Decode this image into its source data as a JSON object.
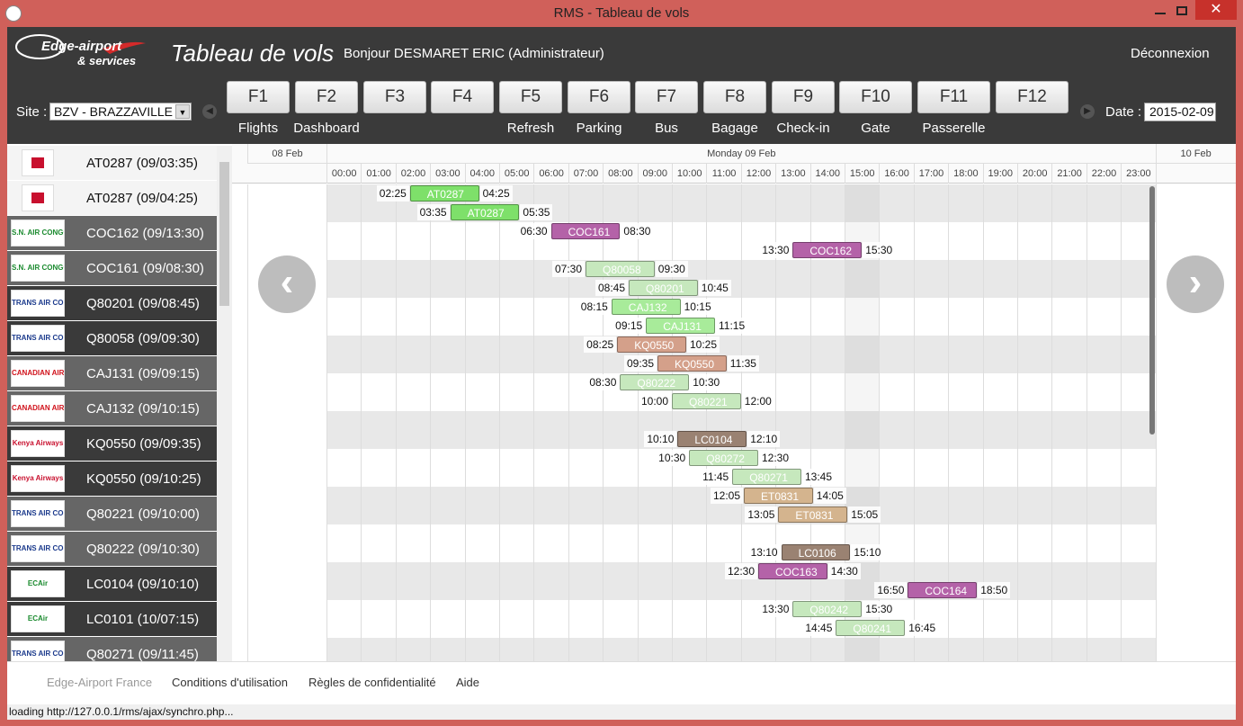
{
  "window": {
    "title": "RMS - Tableau de vols"
  },
  "header": {
    "brand": "Edge-airport",
    "brand_sub": "& services",
    "page_title": "Tableau de vols",
    "greeting": "Bonjour DESMARET ERIC (Administrateur)",
    "logout": "Déconnexion"
  },
  "toolbar": {
    "site_label": "Site :",
    "site": "BZV - BRAZZAVILLE",
    "date_label": "Date :",
    "date": "2015-02-09",
    "keys": [
      {
        "key": "F1",
        "label": "Flights"
      },
      {
        "key": "F2",
        "label": "Dashboard"
      },
      {
        "key": "F3"
      },
      {
        "key": "F4"
      },
      {
        "key": "F5",
        "label": "Refresh"
      },
      {
        "key": "F6",
        "label": "Parking"
      },
      {
        "key": "F7",
        "label": "Bus"
      },
      {
        "key": "F8",
        "label": "Bagage"
      },
      {
        "key": "F9",
        "label": "Check-in"
      },
      {
        "key": "F10",
        "label": "Gate"
      },
      {
        "key": "F11",
        "label": "Passerelle"
      },
      {
        "key": "F12"
      }
    ]
  },
  "flight_list": [
    {
      "flight": "AT0287 (09/03:35)",
      "logo_color": "#c8102e"
    },
    {
      "flight": "AT0287 (09/04:25)",
      "logo_color": "#c8102e"
    },
    {
      "flight": "COC162 (09/13:30)",
      "logo": "S.N. AIR CONGO",
      "logo_color": "#1a8a2e"
    },
    {
      "flight": "COC161 (09/08:30)",
      "logo": "S.N. AIR CONGO",
      "logo_color": "#1a8a2e"
    },
    {
      "flight": "Q80201 (09/08:45)",
      "logo": "TRANS AIR CONGO",
      "logo_color": "#1b3a8c"
    },
    {
      "flight": "Q80058 (09/09:30)",
      "logo": "TRANS AIR CONGO",
      "logo_color": "#1b3a8c"
    },
    {
      "flight": "CAJ131 (09/09:15)",
      "logo": "CANADIAN AIRWAYS CONGO",
      "logo_color": "#d0121b"
    },
    {
      "flight": "CAJ132 (09/10:15)",
      "logo": "CANADIAN AIRWAYS CONGO",
      "logo_color": "#d0121b"
    },
    {
      "flight": "KQ0550 (09/09:35)",
      "logo": "Kenya Airways",
      "logo_color": "#c8102e"
    },
    {
      "flight": "KQ0550 (09/10:25)",
      "logo": "Kenya Airways",
      "logo_color": "#c8102e"
    },
    {
      "flight": "Q80221 (09/10:00)",
      "logo": "TRANS AIR CONGO",
      "logo_color": "#1b3a8c"
    },
    {
      "flight": "Q80222 (09/10:30)",
      "logo": "TRANS AIR CONGO",
      "logo_color": "#1b3a8c"
    },
    {
      "flight": "LC0104 (09/10:10)",
      "logo": "ECAir",
      "logo_color": "#1a8a2e"
    },
    {
      "flight": "LC0101 (10/07:15)",
      "logo": "ECAir",
      "logo_color": "#1a8a2e"
    },
    {
      "flight": "Q80271 (09/11:45)",
      "logo": "TRANS AIR CONGO",
      "logo_color": "#1b3a8c"
    }
  ],
  "timeline": {
    "days": [
      "08 Feb",
      "Monday 09 Feb",
      "10 Feb"
    ],
    "hours": [
      "00:00",
      "01:00",
      "02:00",
      "03:00",
      "04:00",
      "05:00",
      "06:00",
      "07:00",
      "08:00",
      "09:00",
      "10:00",
      "11:00",
      "12:00",
      "13:00",
      "14:00",
      "15:00",
      "16:00",
      "17:00",
      "18:00",
      "19:00",
      "20:00",
      "21:00",
      "22:00",
      "23:00"
    ],
    "rows": [
      {
        "start": "02:25",
        "label": "AT0287",
        "end": "04:25",
        "color": "#7ee06a"
      },
      {
        "start": "03:35",
        "label": "AT0287",
        "end": "05:35",
        "color": "#7ee06a"
      },
      {
        "start": "06:30",
        "label": "COC161",
        "end": "08:30",
        "color": "#b462a8"
      },
      {
        "start": "13:30",
        "label": "COC162",
        "end": "15:30",
        "color": "#b462a8"
      },
      {
        "start": "07:30",
        "label": "Q80058",
        "end": "09:30",
        "color": "#c6e8bd"
      },
      {
        "start": "08:45",
        "label": "Q80201",
        "end": "10:45",
        "color": "#c6e8bd"
      },
      {
        "start": "08:15",
        "label": "CAJ132",
        "end": "10:15",
        "color": "#a8eb9a"
      },
      {
        "start": "09:15",
        "label": "CAJ131",
        "end": "11:15",
        "color": "#a8eb9a"
      },
      {
        "start": "08:25",
        "label": "KQ0550",
        "end": "10:25",
        "color": "#d4a08a"
      },
      {
        "start": "09:35",
        "label": "KQ0550",
        "end": "11:35",
        "color": "#d4a08a"
      },
      {
        "start": "08:30",
        "label": "Q80222",
        "end": "10:30",
        "color": "#c6e8bd"
      },
      {
        "start": "10:00",
        "label": "Q80221",
        "end": "12:00",
        "color": "#c6e8bd"
      },
      {},
      {
        "start": "10:10",
        "label": "LC0104",
        "end": "12:10",
        "color": "#9a8272"
      },
      {
        "start": "10:30",
        "label": "Q80272",
        "end": "12:30",
        "color": "#c6e8bd"
      },
      {
        "start": "11:45",
        "label": "Q80271",
        "end": "13:45",
        "color": "#c6e8bd"
      },
      {
        "start": "12:05",
        "label": "ET0831",
        "end": "14:05",
        "color": "#d4b48e"
      },
      {
        "start": "13:05",
        "label": "ET0831",
        "end": "15:05",
        "color": "#d4b48e"
      },
      {},
      {
        "start": "13:10",
        "label": "LC0106",
        "end": "15:10",
        "color": "#9a8272"
      },
      {
        "start": "12:30",
        "label": "COC163",
        "end": "14:30",
        "color": "#b462a8"
      },
      {
        "start": "16:50",
        "label": "COC164",
        "end": "18:50",
        "color": "#b462a8"
      },
      {
        "start": "13:30",
        "label": "Q80242",
        "end": "15:30",
        "color": "#c6e8bd"
      },
      {
        "start": "14:45",
        "label": "Q80241",
        "end": "16:45",
        "color": "#c6e8bd"
      }
    ]
  },
  "footer": {
    "links": [
      "Edge-Airport France",
      "Conditions d'utilisation",
      "Règles de confidentialité",
      "Aide"
    ]
  },
  "status": "loading http://127.0.0.1/rms/ajax/synchro.php..."
}
